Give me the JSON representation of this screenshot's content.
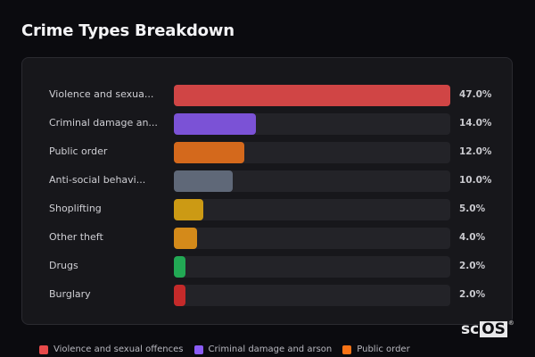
{
  "header": {
    "title": "Crime Types Breakdown"
  },
  "chart_data": {
    "type": "bar",
    "orientation": "horizontal",
    "title": "Crime Types Breakdown",
    "categories": [
      "Violence and sexual offences",
      "Criminal damage and arson",
      "Public order",
      "Anti-social behaviour",
      "Shoplifting",
      "Other theft",
      "Drugs",
      "Burglary"
    ],
    "display_labels": [
      "Violence and sexua...",
      "Criminal damage an...",
      "Public order",
      "Anti-social behavi...",
      "Shoplifting",
      "Other theft",
      "Drugs",
      "Burglary"
    ],
    "values": [
      47.0,
      14.0,
      12.0,
      10.0,
      5.0,
      4.0,
      2.0,
      2.0
    ],
    "value_labels": [
      "47.0%",
      "14.0%",
      "12.0%",
      "10.0%",
      "5.0%",
      "4.0%",
      "2.0%",
      "2.0%"
    ],
    "colors": [
      "#d04545",
      "#7b52d6",
      "#d4691c",
      "#5f6878",
      "#cc9a14",
      "#d48a1a",
      "#22a854",
      "#c42a2a"
    ],
    "unit": "%",
    "scale_max": 47.0,
    "legend": [
      {
        "label": "Violence and sexual offences",
        "color": "#e84a4a"
      },
      {
        "label": "Criminal damage and arson",
        "color": "#8b5cf6"
      },
      {
        "label": "Public order",
        "color": "#f97316"
      }
    ],
    "legend_position": "bottom",
    "grid": false
  },
  "branding": {
    "logo_sc": "sc",
    "logo_os": "OS",
    "logo_reg": "®"
  }
}
